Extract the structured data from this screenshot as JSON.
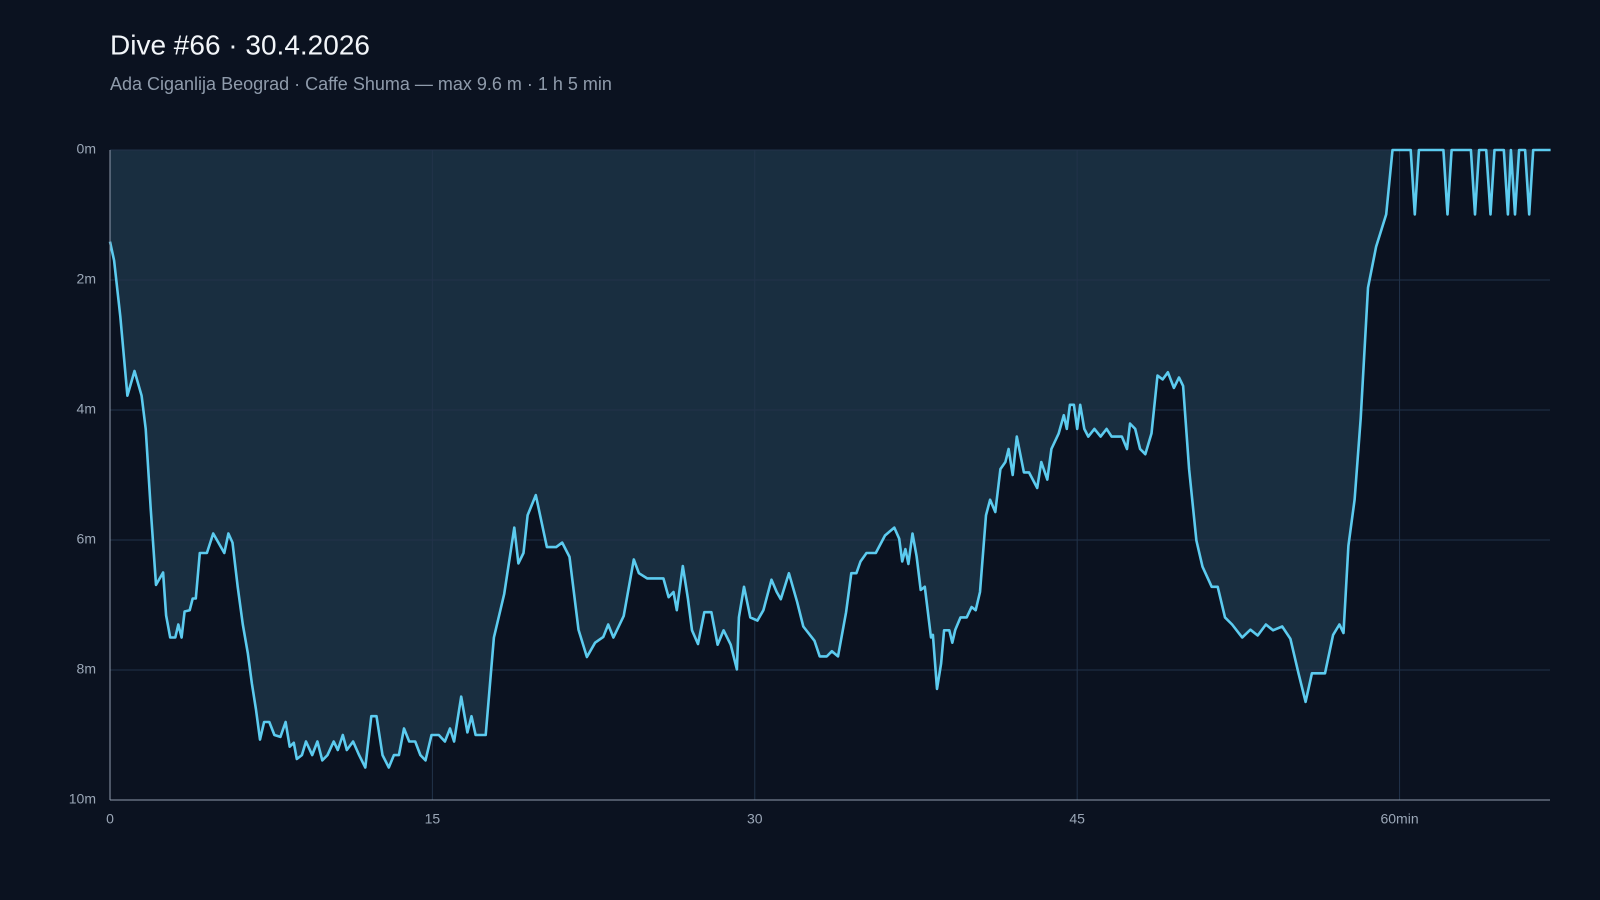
{
  "chart_data": {
    "type": "area",
    "title": "Dive #66 · 30.4.2026",
    "subtitle": "Ada Ciganlija Beograd · Caffe Shuma — max 9.6 m · 1 h 5 min",
    "y_inverted": true,
    "grid": true,
    "color": "#5ccbef",
    "fill_color": "#192e40",
    "xlim": [
      0,
      67
    ],
    "ylim": [
      0,
      10
    ],
    "xticks": [
      0,
      15,
      30,
      45,
      {
        "value": 60,
        "label": "60min"
      }
    ],
    "yticks": [
      {
        "value": 0,
        "label": "0m"
      },
      {
        "value": 2,
        "label": "2m"
      },
      {
        "value": 4,
        "label": "4m"
      },
      {
        "value": 6,
        "label": "6m"
      },
      {
        "value": 8,
        "label": "8m"
      },
      {
        "value": 10,
        "label": "10m"
      }
    ],
    "x": [
      0,
      0.19,
      0.48,
      0.81,
      1.14,
      1.47,
      1.66,
      1.9,
      2.14,
      2.47,
      2.61,
      2.8,
      3.04,
      3.18,
      3.33,
      3.47,
      3.71,
      3.85,
      3.99,
      4.18,
      4.51,
      4.8,
      5.32,
      5.51,
      5.7,
      5.94,
      6.18,
      6.41,
      6.6,
      6.79,
      6.98,
      7.17,
      7.41,
      7.65,
      7.93,
      8.17,
      8.36,
      8.55,
      8.69,
      8.93,
      9.12,
      9.41,
      9.65,
      9.88,
      10.12,
      10.41,
      10.6,
      10.83,
      11.02,
      11.31,
      11.59,
      11.88,
      12.16,
      12.4,
      12.68,
      12.97,
      13.21,
      13.44,
      13.68,
      13.92,
      14.2,
      14.44,
      14.68,
      14.96,
      15.3,
      15.58,
      15.82,
      16.01,
      16.34,
      16.63,
      16.82,
      17.01,
      17.48,
      17.86,
      18.34,
      18.81,
      19.0,
      19.24,
      19.43,
      19.81,
      20.33,
      20.76,
      21.04,
      21.38,
      21.8,
      22.19,
      22.57,
      22.95,
      23.18,
      23.42,
      23.9,
      24.37,
      24.61,
      24.99,
      25.75,
      25.99,
      26.22,
      26.37,
      26.65,
      26.89,
      27.08,
      27.36,
      27.65,
      27.98,
      28.27,
      28.55,
      28.88,
      29.17,
      29.26,
      29.5,
      29.79,
      30.12,
      30.4,
      30.78,
      31.02,
      31.21,
      31.59,
      31.97,
      32.26,
      32.78,
      33.02,
      33.35,
      33.59,
      33.87,
      34.25,
      34.49,
      34.73,
      34.92,
      35.2,
      35.63,
      36.06,
      36.49,
      36.72,
      36.86,
      37.01,
      37.15,
      37.34,
      37.53,
      37.72,
      37.91,
      38.2,
      38.29,
      38.48,
      38.67,
      38.81,
      39.05,
      39.19,
      39.33,
      39.57,
      39.86,
      40.09,
      40.28,
      40.48,
      40.76,
      40.95,
      41.19,
      41.43,
      41.66,
      41.81,
      42.0,
      42.19,
      42.52,
      42.76,
      43.14,
      43.33,
      43.61,
      43.8,
      44.14,
      44.38,
      44.52,
      44.66,
      44.85,
      45.0,
      45.14,
      45.33,
      45.52,
      45.8,
      46.09,
      46.37,
      46.6,
      47.08,
      47.32,
      47.46,
      47.7,
      47.93,
      48.17,
      48.46,
      48.74,
      48.98,
      49.22,
      49.5,
      49.74,
      49.93,
      50.21,
      50.55,
      50.83,
      51.26,
      51.54,
      51.88,
      52.21,
      52.68,
      53.06,
      53.4,
      53.78,
      54.11,
      54.54,
      54.92,
      55.3,
      55.63,
      55.92,
      56.53,
      56.91,
      57.2,
      57.39,
      57.62,
      57.91,
      58.19,
      58.53,
      58.91,
      59.38,
      59.67,
      60.52,
      60.71,
      60.9,
      62.04,
      62.23,
      62.42,
      63.32,
      63.51,
      63.7,
      64.03,
      64.23,
      64.42,
      64.85,
      65.04,
      65.18,
      65.37,
      65.56,
      65.84,
      66.03,
      66.22,
      67.03
    ],
    "values": [
      1.41,
      1.7,
      2.56,
      3.78,
      3.4,
      3.78,
      4.29,
      5.54,
      6.69,
      6.5,
      7.16,
      7.5,
      7.5,
      7.3,
      7.5,
      7.1,
      7.08,
      6.9,
      6.9,
      6.2,
      6.2,
      5.9,
      6.2,
      5.9,
      6.04,
      6.72,
      7.3,
      7.74,
      8.21,
      8.6,
      9.07,
      8.8,
      8.8,
      9.0,
      9.03,
      8.8,
      9.18,
      9.12,
      9.37,
      9.31,
      9.1,
      9.31,
      9.1,
      9.39,
      9.31,
      9.1,
      9.23,
      9.0,
      9.23,
      9.1,
      9.31,
      9.5,
      8.71,
      8.71,
      9.31,
      9.5,
      9.31,
      9.31,
      8.9,
      9.1,
      9.1,
      9.31,
      9.39,
      9.0,
      9.0,
      9.1,
      8.9,
      9.1,
      8.41,
      8.96,
      8.71,
      9.0,
      9.0,
      7.5,
      6.83,
      5.81,
      6.36,
      6.2,
      5.62,
      5.31,
      6.11,
      6.11,
      6.04,
      6.26,
      7.38,
      7.8,
      7.58,
      7.49,
      7.3,
      7.5,
      7.17,
      6.3,
      6.51,
      6.59,
      6.59,
      6.88,
      6.8,
      7.08,
      6.4,
      6.9,
      7.39,
      7.6,
      7.11,
      7.11,
      7.61,
      7.39,
      7.61,
      7.99,
      7.19,
      6.72,
      7.19,
      7.24,
      7.08,
      6.61,
      6.8,
      6.91,
      6.51,
      6.95,
      7.33,
      7.55,
      7.79,
      7.79,
      7.71,
      7.79,
      7.11,
      6.51,
      6.51,
      6.33,
      6.2,
      6.2,
      5.93,
      5.81,
      5.98,
      6.33,
      6.14,
      6.37,
      5.9,
      6.25,
      6.77,
      6.72,
      7.5,
      7.46,
      8.29,
      7.9,
      7.39,
      7.39,
      7.58,
      7.38,
      7.19,
      7.19,
      7.03,
      7.08,
      6.8,
      5.62,
      5.38,
      5.57,
      4.91,
      4.8,
      4.6,
      5.0,
      4.41,
      4.96,
      4.96,
      5.2,
      4.8,
      5.07,
      4.6,
      4.36,
      4.08,
      4.29,
      3.92,
      3.92,
      4.29,
      3.92,
      4.29,
      4.41,
      4.29,
      4.41,
      4.29,
      4.41,
      4.41,
      4.6,
      4.21,
      4.29,
      4.6,
      4.68,
      4.36,
      3.47,
      3.53,
      3.42,
      3.66,
      3.5,
      3.63,
      4.91,
      6.01,
      6.41,
      6.72,
      6.72,
      7.19,
      7.3,
      7.5,
      7.38,
      7.47,
      7.3,
      7.39,
      7.33,
      7.52,
      8.05,
      8.49,
      8.05,
      8.05,
      7.46,
      7.3,
      7.43,
      6.09,
      5.38,
      4.13,
      2.12,
      1.49,
      0.99,
      0,
      0,
      0.99,
      0,
      0,
      0.99,
      0,
      0,
      0.99,
      0,
      0,
      0.99,
      0,
      0,
      0.99,
      0,
      0.99,
      0,
      0,
      0.99,
      0,
      0
    ]
  }
}
